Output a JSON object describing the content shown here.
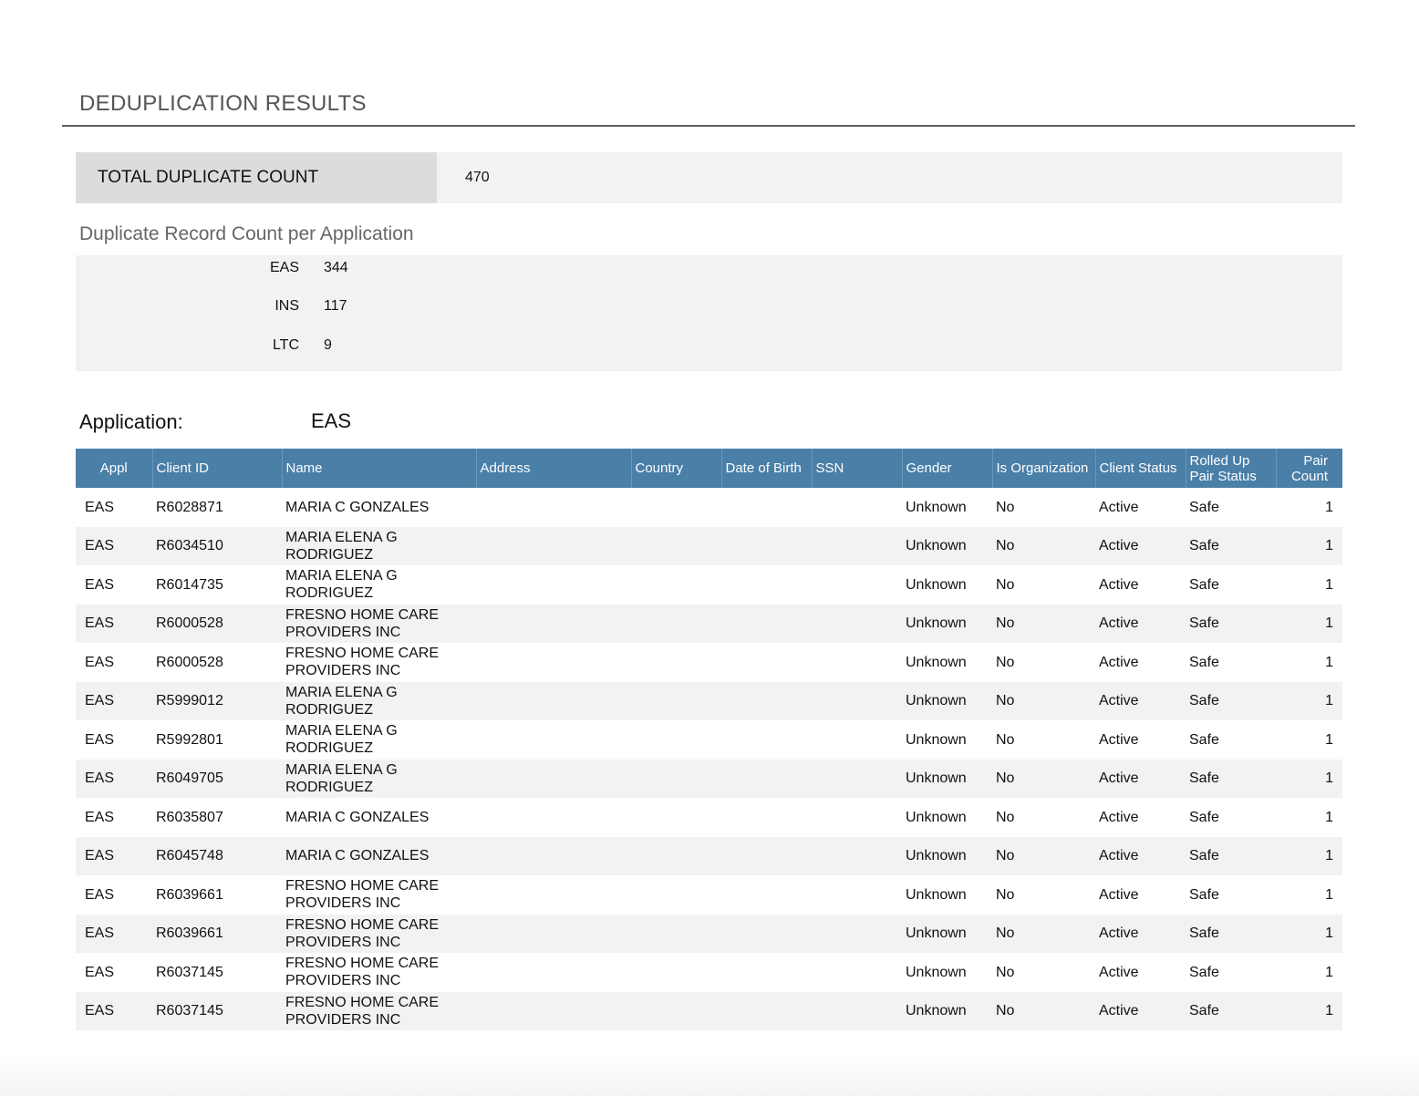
{
  "page": {
    "title": "DEDUPLICATION RESULTS"
  },
  "total": {
    "label": "TOTAL DUPLICATE COUNT",
    "value": "470"
  },
  "per_application": {
    "heading": "Duplicate Record Count per Application",
    "rows": [
      {
        "app": "EAS",
        "count": "344"
      },
      {
        "app": "INS",
        "count": "117"
      },
      {
        "app": "LTC",
        "count": "9"
      }
    ]
  },
  "application": {
    "label": "Application:",
    "value": "EAS"
  },
  "table": {
    "columns": [
      "Appl",
      "Client ID",
      "Name",
      "Address",
      "Country",
      "Date of Birth",
      "SSN",
      "Gender",
      "Is Organization",
      "Client Status",
      "Rolled Up Pair Status",
      "Pair Count"
    ],
    "rows": [
      [
        "EAS",
        "R6028871",
        "MARIA C GONZALES",
        "",
        "",
        "",
        "",
        "Unknown",
        "No",
        "Active",
        "Safe",
        "1"
      ],
      [
        "EAS",
        "R6034510",
        "MARIA ELENA G RODRIGUEZ",
        "",
        "",
        "",
        "",
        "Unknown",
        "No",
        "Active",
        "Safe",
        "1"
      ],
      [
        "EAS",
        "R6014735",
        "MARIA ELENA G RODRIGUEZ",
        "",
        "",
        "",
        "",
        "Unknown",
        "No",
        "Active",
        "Safe",
        "1"
      ],
      [
        "EAS",
        "R6000528",
        "FRESNO HOME CARE PROVIDERS INC",
        "",
        "",
        "",
        "",
        "Unknown",
        "No",
        "Active",
        "Safe",
        "1"
      ],
      [
        "EAS",
        "R6000528",
        "FRESNO HOME CARE PROVIDERS INC",
        "",
        "",
        "",
        "",
        "Unknown",
        "No",
        "Active",
        "Safe",
        "1"
      ],
      [
        "EAS",
        "R5999012",
        "MARIA ELENA G RODRIGUEZ",
        "",
        "",
        "",
        "",
        "Unknown",
        "No",
        "Active",
        "Safe",
        "1"
      ],
      [
        "EAS",
        "R5992801",
        "MARIA ELENA G RODRIGUEZ",
        "",
        "",
        "",
        "",
        "Unknown",
        "No",
        "Active",
        "Safe",
        "1"
      ],
      [
        "EAS",
        "R6049705",
        "MARIA ELENA G RODRIGUEZ",
        "",
        "",
        "",
        "",
        "Unknown",
        "No",
        "Active",
        "Safe",
        "1"
      ],
      [
        "EAS",
        "R6035807",
        "MARIA C GONZALES",
        "",
        "",
        "",
        "",
        "Unknown",
        "No",
        "Active",
        "Safe",
        "1"
      ],
      [
        "EAS",
        "R6045748",
        "MARIA C GONZALES",
        "",
        "",
        "",
        "",
        "Unknown",
        "No",
        "Active",
        "Safe",
        "1"
      ],
      [
        "EAS",
        "R6039661",
        "FRESNO HOME CARE PROVIDERS INC",
        "",
        "",
        "",
        "",
        "Unknown",
        "No",
        "Active",
        "Safe",
        "1"
      ],
      [
        "EAS",
        "R6039661",
        "FRESNO HOME CARE PROVIDERS INC",
        "",
        "",
        "",
        "",
        "Unknown",
        "No",
        "Active",
        "Safe",
        "1"
      ],
      [
        "EAS",
        "R6037145",
        "FRESNO HOME CARE PROVIDERS INC",
        "",
        "",
        "",
        "",
        "Unknown",
        "No",
        "Active",
        "Safe",
        "1"
      ],
      [
        "EAS",
        "R6037145",
        "FRESNO HOME CARE PROVIDERS INC",
        "",
        "",
        "",
        "",
        "Unknown",
        "No",
        "Active",
        "Safe",
        "1"
      ]
    ]
  },
  "colors": {
    "header_bg": "#4a7fa8",
    "label_bg": "#dcdcdc",
    "panel_bg": "#f2f2f2"
  }
}
